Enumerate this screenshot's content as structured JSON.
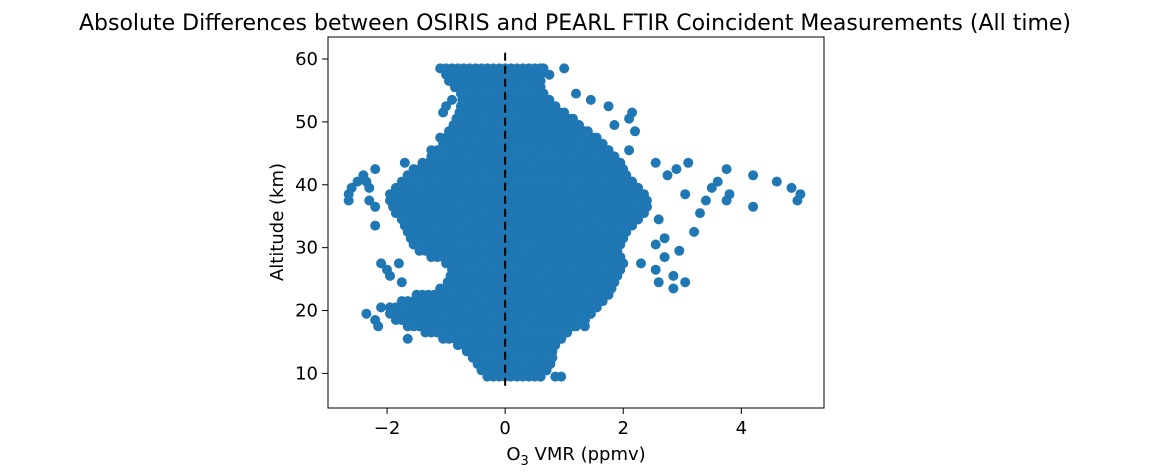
{
  "chart_data": {
    "type": "scatter",
    "title": "Absolute Differences between OSIRIS and PEARL FTIR Coincident Measurements (All time)",
    "xlabel_prefix": "O",
    "xlabel_subscript": "3",
    "xlabel_suffix": " VMR (ppmv)",
    "ylabel": "Altitude (km)",
    "xlim": [
      -3.0,
      5.4
    ],
    "ylim": [
      4.5,
      63.5
    ],
    "xticks": [
      -2,
      0,
      2,
      4
    ],
    "xtick_labels": [
      "−2",
      "0",
      "2",
      "4"
    ],
    "yticks": [
      10,
      20,
      30,
      40,
      50,
      60
    ],
    "ytick_labels": [
      "10",
      "20",
      "30",
      "40",
      "50",
      "60"
    ],
    "grid": false,
    "marker_color": "#1f77b4",
    "reference_line": {
      "x": 0,
      "y_range": [
        7.5,
        61
      ],
      "style": "dashed",
      "color": "#000000"
    },
    "envelope": {
      "altitudes": [
        9.5,
        10.5,
        12,
        14,
        15,
        16,
        17,
        18,
        19,
        20,
        21,
        22,
        23,
        24,
        25,
        26,
        27,
        28,
        29,
        30,
        31,
        32,
        33,
        34,
        35,
        36,
        37,
        38,
        39,
        40,
        41,
        42,
        43,
        44,
        45,
        46,
        47,
        48,
        49,
        50,
        51,
        52,
        53,
        54,
        55,
        56,
        57,
        58.5
      ],
      "min": [
        -0.3,
        -0.4,
        -0.5,
        -0.7,
        -0.9,
        -1.2,
        -1.5,
        -1.8,
        -1.9,
        -2.0,
        -1.9,
        -1.6,
        -1.2,
        -1.0,
        -0.95,
        -0.9,
        -0.9,
        -1.1,
        -1.4,
        -1.5,
        -1.6,
        -1.6,
        -1.7,
        -1.7,
        -1.8,
        -1.9,
        -1.9,
        -2.0,
        -1.9,
        -1.8,
        -1.7,
        -1.6,
        -1.5,
        -1.3,
        -1.2,
        -1.1,
        -1.0,
        -1.0,
        -0.9,
        -0.85,
        -0.8,
        -0.75,
        -0.75,
        -0.7,
        -0.8,
        -0.9,
        -1.0,
        -1.0
      ],
      "max": [
        0.6,
        0.7,
        0.8,
        0.8,
        0.9,
        1.0,
        1.1,
        1.3,
        1.4,
        1.5,
        1.6,
        1.7,
        1.8,
        1.8,
        1.9,
        1.9,
        2.0,
        2.0,
        1.9,
        1.9,
        2.0,
        2.0,
        2.1,
        2.2,
        2.3,
        2.4,
        2.4,
        2.4,
        2.3,
        2.2,
        2.1,
        2.0,
        2.0,
        1.9,
        1.8,
        1.7,
        1.6,
        1.5,
        1.3,
        1.2,
        1.1,
        0.9,
        0.8,
        0.7,
        0.6,
        0.6,
        0.6,
        0.6
      ]
    },
    "outliers": [
      {
        "x": -2.65,
        "y": 37.5
      },
      {
        "x": -2.65,
        "y": 38.5
      },
      {
        "x": -2.6,
        "y": 39.5
      },
      {
        "x": -2.5,
        "y": 40.5
      },
      {
        "x": -2.4,
        "y": 41.5
      },
      {
        "x": -2.2,
        "y": 42.5
      },
      {
        "x": -2.35,
        "y": 40.5
      },
      {
        "x": -2.3,
        "y": 39.5
      },
      {
        "x": -2.3,
        "y": 37.5
      },
      {
        "x": -2.2,
        "y": 36.5
      },
      {
        "x": -2.2,
        "y": 33.5
      },
      {
        "x": -2.1,
        "y": 27.5
      },
      {
        "x": -2.0,
        "y": 26.5
      },
      {
        "x": -1.95,
        "y": 25.5
      },
      {
        "x": -1.8,
        "y": 27.5
      },
      {
        "x": -1.75,
        "y": 24.5
      },
      {
        "x": -2.35,
        "y": 19.5
      },
      {
        "x": -2.2,
        "y": 18.5
      },
      {
        "x": -2.1,
        "y": 20.5
      },
      {
        "x": -2.15,
        "y": 17.5
      },
      {
        "x": -1.65,
        "y": 15.5
      },
      {
        "x": -1.5,
        "y": 22.5
      },
      {
        "x": 5.0,
        "y": 38.5
      },
      {
        "x": 4.95,
        "y": 37.5
      },
      {
        "x": 4.85,
        "y": 39.5
      },
      {
        "x": 4.6,
        "y": 40.5
      },
      {
        "x": 4.2,
        "y": 41.5
      },
      {
        "x": 4.2,
        "y": 36.5
      },
      {
        "x": 3.8,
        "y": 38.5
      },
      {
        "x": 3.75,
        "y": 37.5
      },
      {
        "x": 3.75,
        "y": 42.5
      },
      {
        "x": 3.6,
        "y": 40.5
      },
      {
        "x": 3.5,
        "y": 39.5
      },
      {
        "x": 3.4,
        "y": 37.5
      },
      {
        "x": 3.3,
        "y": 35.5
      },
      {
        "x": 3.2,
        "y": 32.5
      },
      {
        "x": 3.1,
        "y": 43.5
      },
      {
        "x": 3.05,
        "y": 38.5
      },
      {
        "x": 2.9,
        "y": 42.5
      },
      {
        "x": 2.75,
        "y": 41.5
      },
      {
        "x": 3.05,
        "y": 24.5
      },
      {
        "x": 2.85,
        "y": 25.5
      },
      {
        "x": 2.85,
        "y": 23.5
      },
      {
        "x": 2.6,
        "y": 24.5
      },
      {
        "x": 2.55,
        "y": 26.5
      },
      {
        "x": 2.3,
        "y": 27.5
      },
      {
        "x": 2.7,
        "y": 28.5
      },
      {
        "x": 2.55,
        "y": 30.5
      },
      {
        "x": 2.7,
        "y": 31.5
      },
      {
        "x": 2.95,
        "y": 29.5
      },
      {
        "x": 2.6,
        "y": 34.5
      },
      {
        "x": 2.55,
        "y": 43.5
      },
      {
        "x": 2.1,
        "y": 45.5
      },
      {
        "x": 2.2,
        "y": 48.5
      },
      {
        "x": 2.15,
        "y": 51.5
      },
      {
        "x": 2.1,
        "y": 50.5
      },
      {
        "x": 1.75,
        "y": 52.5
      },
      {
        "x": 1.45,
        "y": 53.5
      },
      {
        "x": 1.85,
        "y": 49.5
      },
      {
        "x": 1.2,
        "y": 54.5
      },
      {
        "x": 0.75,
        "y": 57.5
      },
      {
        "x": 0.65,
        "y": 58.5
      },
      {
        "x": 1.0,
        "y": 58.5
      },
      {
        "x": 0.95,
        "y": 9.5
      },
      {
        "x": 0.85,
        "y": 9.5
      },
      {
        "x": 1.35,
        "y": 17.5
      },
      {
        "x": -1.1,
        "y": 58.5
      },
      {
        "x": -0.9,
        "y": 57.5
      },
      {
        "x": -0.9,
        "y": 53.5
      },
      {
        "x": -1.0,
        "y": 52.5
      },
      {
        "x": -1.05,
        "y": 51.5
      },
      {
        "x": -1.1,
        "y": 47.5
      },
      {
        "x": -1.25,
        "y": 45.5
      },
      {
        "x": -1.7,
        "y": 43.5
      }
    ]
  }
}
